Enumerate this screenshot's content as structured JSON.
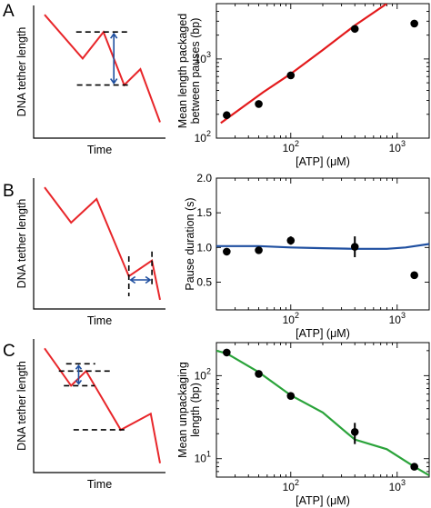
{
  "panel_labels": [
    "A",
    "B",
    "C"
  ],
  "schematics": [
    {
      "ylabel": "DNA tether length",
      "xlabel": "Time",
      "trace": [
        [
          0.0,
          0.93
        ],
        [
          0.33,
          0.6
        ],
        [
          0.51,
          0.8
        ],
        [
          0.69,
          0.4
        ],
        [
          0.83,
          0.52
        ],
        [
          1.0,
          0.12
        ]
      ],
      "measurement": "vertical"
    },
    {
      "ylabel": "DNA tether length",
      "xlabel": "Time",
      "trace": [
        [
          0.0,
          0.93
        ],
        [
          0.23,
          0.66
        ],
        [
          0.45,
          0.84
        ],
        [
          0.73,
          0.25
        ],
        [
          0.93,
          0.37
        ],
        [
          1.0,
          0.07
        ]
      ],
      "measurement": "horizontal"
    },
    {
      "ylabel": "DNA tether length",
      "xlabel": "Time",
      "trace": [
        [
          0.0,
          0.93
        ],
        [
          0.23,
          0.65
        ],
        [
          0.36,
          0.76
        ],
        [
          0.66,
          0.32
        ],
        [
          0.92,
          0.44
        ],
        [
          1.0,
          0.07
        ]
      ],
      "measurement": "vertical"
    }
  ],
  "colors": {
    "trace": "#e8262a",
    "measure_arrow": "#1f4fa0",
    "fit_A": "#e31a1c",
    "fit_B": "#1f4fa0",
    "fit_C": "#2aa33a",
    "marker": "#000000"
  },
  "xaxis_shared": {
    "label_prefix": "[ATP] (",
    "label_unit": "μ",
    "label_suffix": "M)",
    "tick_base": "10",
    "tick_exponents": [
      "2",
      "3"
    ]
  },
  "chart_data": [
    {
      "type": "scatter",
      "panel": "A",
      "ylabel_lines": [
        "Mean length packaged",
        "between pauses (bp)"
      ],
      "xscale": "log",
      "yscale": "log",
      "xlim": [
        20,
        2000
      ],
      "ylim": [
        100,
        5000
      ],
      "yticks": [
        {
          "value": 100,
          "base": "10",
          "exp": "2"
        },
        {
          "value": 1000,
          "base": "10",
          "exp": "3"
        }
      ],
      "points": [
        {
          "x": 25,
          "y": 195
        },
        {
          "x": 50,
          "y": 270
        },
        {
          "x": 100,
          "y": 620
        },
        {
          "x": 400,
          "y": 2400
        },
        {
          "x": 1450,
          "y": 2800
        }
      ],
      "fit": [
        [
          22,
          155
        ],
        [
          55,
          380
        ],
        [
          100,
          650
        ],
        [
          200,
          1300
        ],
        [
          400,
          2650
        ],
        [
          800,
          5000
        ]
      ]
    },
    {
      "type": "scatter",
      "panel": "B",
      "ylabel_lines": [
        "Pause duration (s)"
      ],
      "xscale": "log",
      "yscale": "linear",
      "xlim": [
        20,
        2000
      ],
      "ylim": [
        0.1,
        2.0
      ],
      "yticks": [
        {
          "value": 0.5,
          "label": "0.5"
        },
        {
          "value": 1.0,
          "label": "1.0"
        },
        {
          "value": 1.5,
          "label": "1.5"
        },
        {
          "value": 2.0,
          "label": "2.0"
        }
      ],
      "points": [
        {
          "x": 25,
          "y": 0.94,
          "err": 0.0
        },
        {
          "x": 50,
          "y": 0.96,
          "err": 0.0
        },
        {
          "x": 100,
          "y": 1.1,
          "err": 0.06
        },
        {
          "x": 400,
          "y": 1.01,
          "err": 0.15
        },
        {
          "x": 1450,
          "y": 0.6,
          "err": 0.0
        }
      ],
      "fit": [
        [
          20,
          1.02
        ],
        [
          50,
          1.02
        ],
        [
          100,
          1.0
        ],
        [
          200,
          0.99
        ],
        [
          400,
          0.98
        ],
        [
          800,
          0.98
        ],
        [
          1200,
          1.0
        ],
        [
          2000,
          1.05
        ]
      ]
    },
    {
      "type": "scatter",
      "panel": "C",
      "ylabel_lines": [
        "Mean unpackaging",
        "length (bp)"
      ],
      "xscale": "log",
      "yscale": "log",
      "xlim": [
        20,
        2000
      ],
      "ylim": [
        6,
        250
      ],
      "yticks": [
        {
          "value": 10,
          "base": "10",
          "exp": "1"
        },
        {
          "value": 100,
          "base": "10",
          "exp": "2"
        }
      ],
      "points": [
        {
          "x": 25,
          "y": 190,
          "err": 0
        },
        {
          "x": 50,
          "y": 105,
          "err": 0
        },
        {
          "x": 100,
          "y": 57,
          "err": 0
        },
        {
          "x": 400,
          "y": 21,
          "err": 6
        },
        {
          "x": 1450,
          "y": 8,
          "err": 0
        }
      ],
      "fit": [
        [
          20,
          200
        ],
        [
          25,
          185
        ],
        [
          50,
          110
        ],
        [
          100,
          58
        ],
        [
          200,
          36
        ],
        [
          400,
          17
        ],
        [
          800,
          13
        ],
        [
          1450,
          8
        ],
        [
          2000,
          6.3
        ]
      ]
    }
  ]
}
